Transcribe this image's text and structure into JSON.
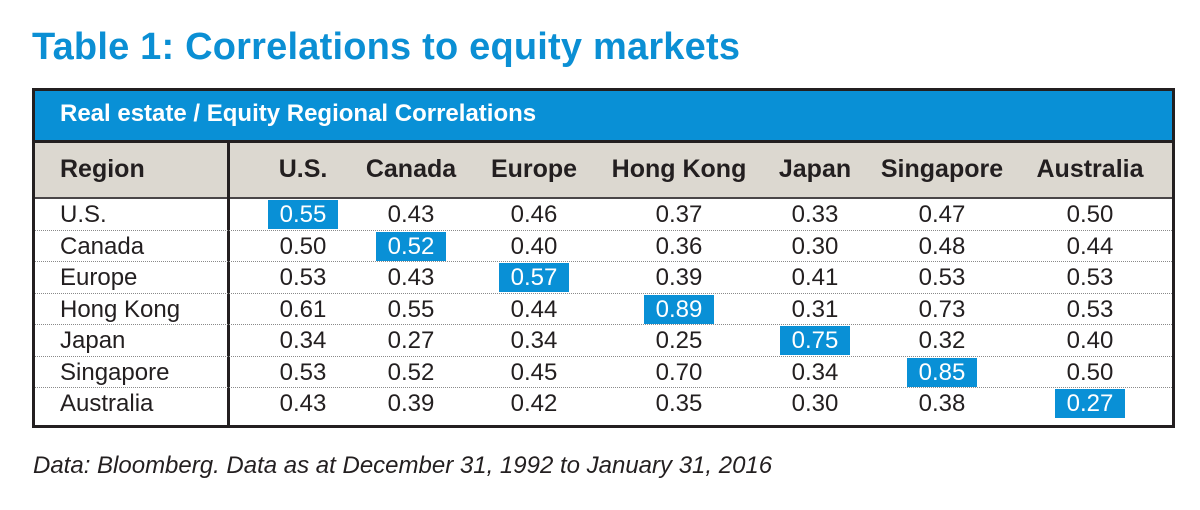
{
  "title": "Table 1: Correlations to equity markets",
  "table": {
    "caption": "Real estate / Equity Regional Correlations",
    "row_header_label": "Region",
    "columns": [
      "U.S.",
      "Canada",
      "Europe",
      "Hong Kong",
      "Japan",
      "Singapore",
      "Australia"
    ],
    "rows": [
      {
        "region": "U.S.",
        "values": [
          "0.55",
          "0.43",
          "0.46",
          "0.37",
          "0.33",
          "0.47",
          "0.50"
        ],
        "highlight": 0
      },
      {
        "region": "Canada",
        "values": [
          "0.50",
          "0.52",
          "0.40",
          "0.36",
          "0.30",
          "0.48",
          "0.44"
        ],
        "highlight": 1
      },
      {
        "region": "Europe",
        "values": [
          "0.53",
          "0.43",
          "0.57",
          "0.39",
          "0.41",
          "0.53",
          "0.53"
        ],
        "highlight": 2
      },
      {
        "region": "Hong Kong",
        "values": [
          "0.61",
          "0.55",
          "0.44",
          "0.89",
          "0.31",
          "0.73",
          "0.53"
        ],
        "highlight": 3
      },
      {
        "region": "Japan",
        "values": [
          "0.34",
          "0.27",
          "0.34",
          "0.25",
          "0.75",
          "0.32",
          "0.40"
        ],
        "highlight": 4
      },
      {
        "region": "Singapore",
        "values": [
          "0.53",
          "0.52",
          "0.45",
          "0.70",
          "0.34",
          "0.85",
          "0.50"
        ],
        "highlight": 5
      },
      {
        "region": "Australia",
        "values": [
          "0.43",
          "0.39",
          "0.42",
          "0.35",
          "0.30",
          "0.38",
          "0.27"
        ],
        "highlight": 6
      }
    ]
  },
  "footnote": "Data: Bloomberg. Data as at December 31, 1992 to January 31, 2016",
  "colors": {
    "accent": "#0990d6",
    "title": "#0b8fd4",
    "header_bg": "#dcd8d0",
    "text": "#231f20"
  },
  "chart_data": {
    "type": "table",
    "title": "Table 1: Correlations to equity markets",
    "subtitle": "Real estate / Equity Regional Correlations",
    "row_label": "Region",
    "columns": [
      "U.S.",
      "Canada",
      "Europe",
      "Hong Kong",
      "Japan",
      "Singapore",
      "Australia"
    ],
    "rows": [
      "U.S.",
      "Canada",
      "Europe",
      "Hong Kong",
      "Japan",
      "Singapore",
      "Australia"
    ],
    "values": [
      [
        0.55,
        0.43,
        0.46,
        0.37,
        0.33,
        0.47,
        0.5
      ],
      [
        0.5,
        0.52,
        0.4,
        0.36,
        0.3,
        0.48,
        0.44
      ],
      [
        0.53,
        0.43,
        0.57,
        0.39,
        0.41,
        0.53,
        0.53
      ],
      [
        0.61,
        0.55,
        0.44,
        0.89,
        0.31,
        0.73,
        0.53
      ],
      [
        0.34,
        0.27,
        0.34,
        0.25,
        0.75,
        0.32,
        0.4
      ],
      [
        0.53,
        0.52,
        0.45,
        0.7,
        0.34,
        0.85,
        0.5
      ],
      [
        0.43,
        0.39,
        0.42,
        0.35,
        0.3,
        0.38,
        0.27
      ]
    ],
    "highlighted": "diagonal (same-region correlations)",
    "annotation": "Data: Bloomberg. Data as at December 31, 1992 to January 31, 2016"
  }
}
